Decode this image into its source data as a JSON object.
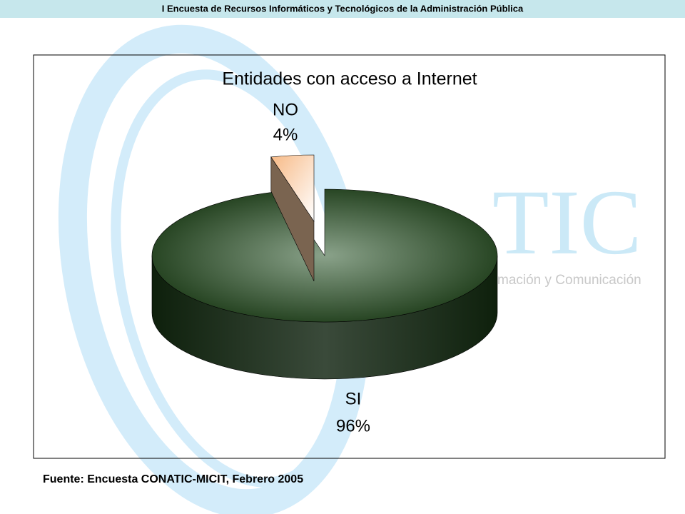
{
  "header": {
    "title": "I Encuesta de Recursos Informáticos y Tecnológicos de la Administración Pública"
  },
  "background": {
    "logo": "TIC",
    "tagline": "mación y Comunicación"
  },
  "chart_data": {
    "type": "pie3d",
    "title": "Entidades con acceso a Internet",
    "categories": [
      "NO",
      "SI"
    ],
    "values": [
      4,
      96
    ],
    "value_labels": [
      "4%",
      "96%"
    ],
    "colors": [
      "#f9c89a",
      "#2e4a2a"
    ]
  },
  "footer": {
    "source": "Fuente: Encuesta CONATIC-MICIT, Febrero 2005"
  }
}
